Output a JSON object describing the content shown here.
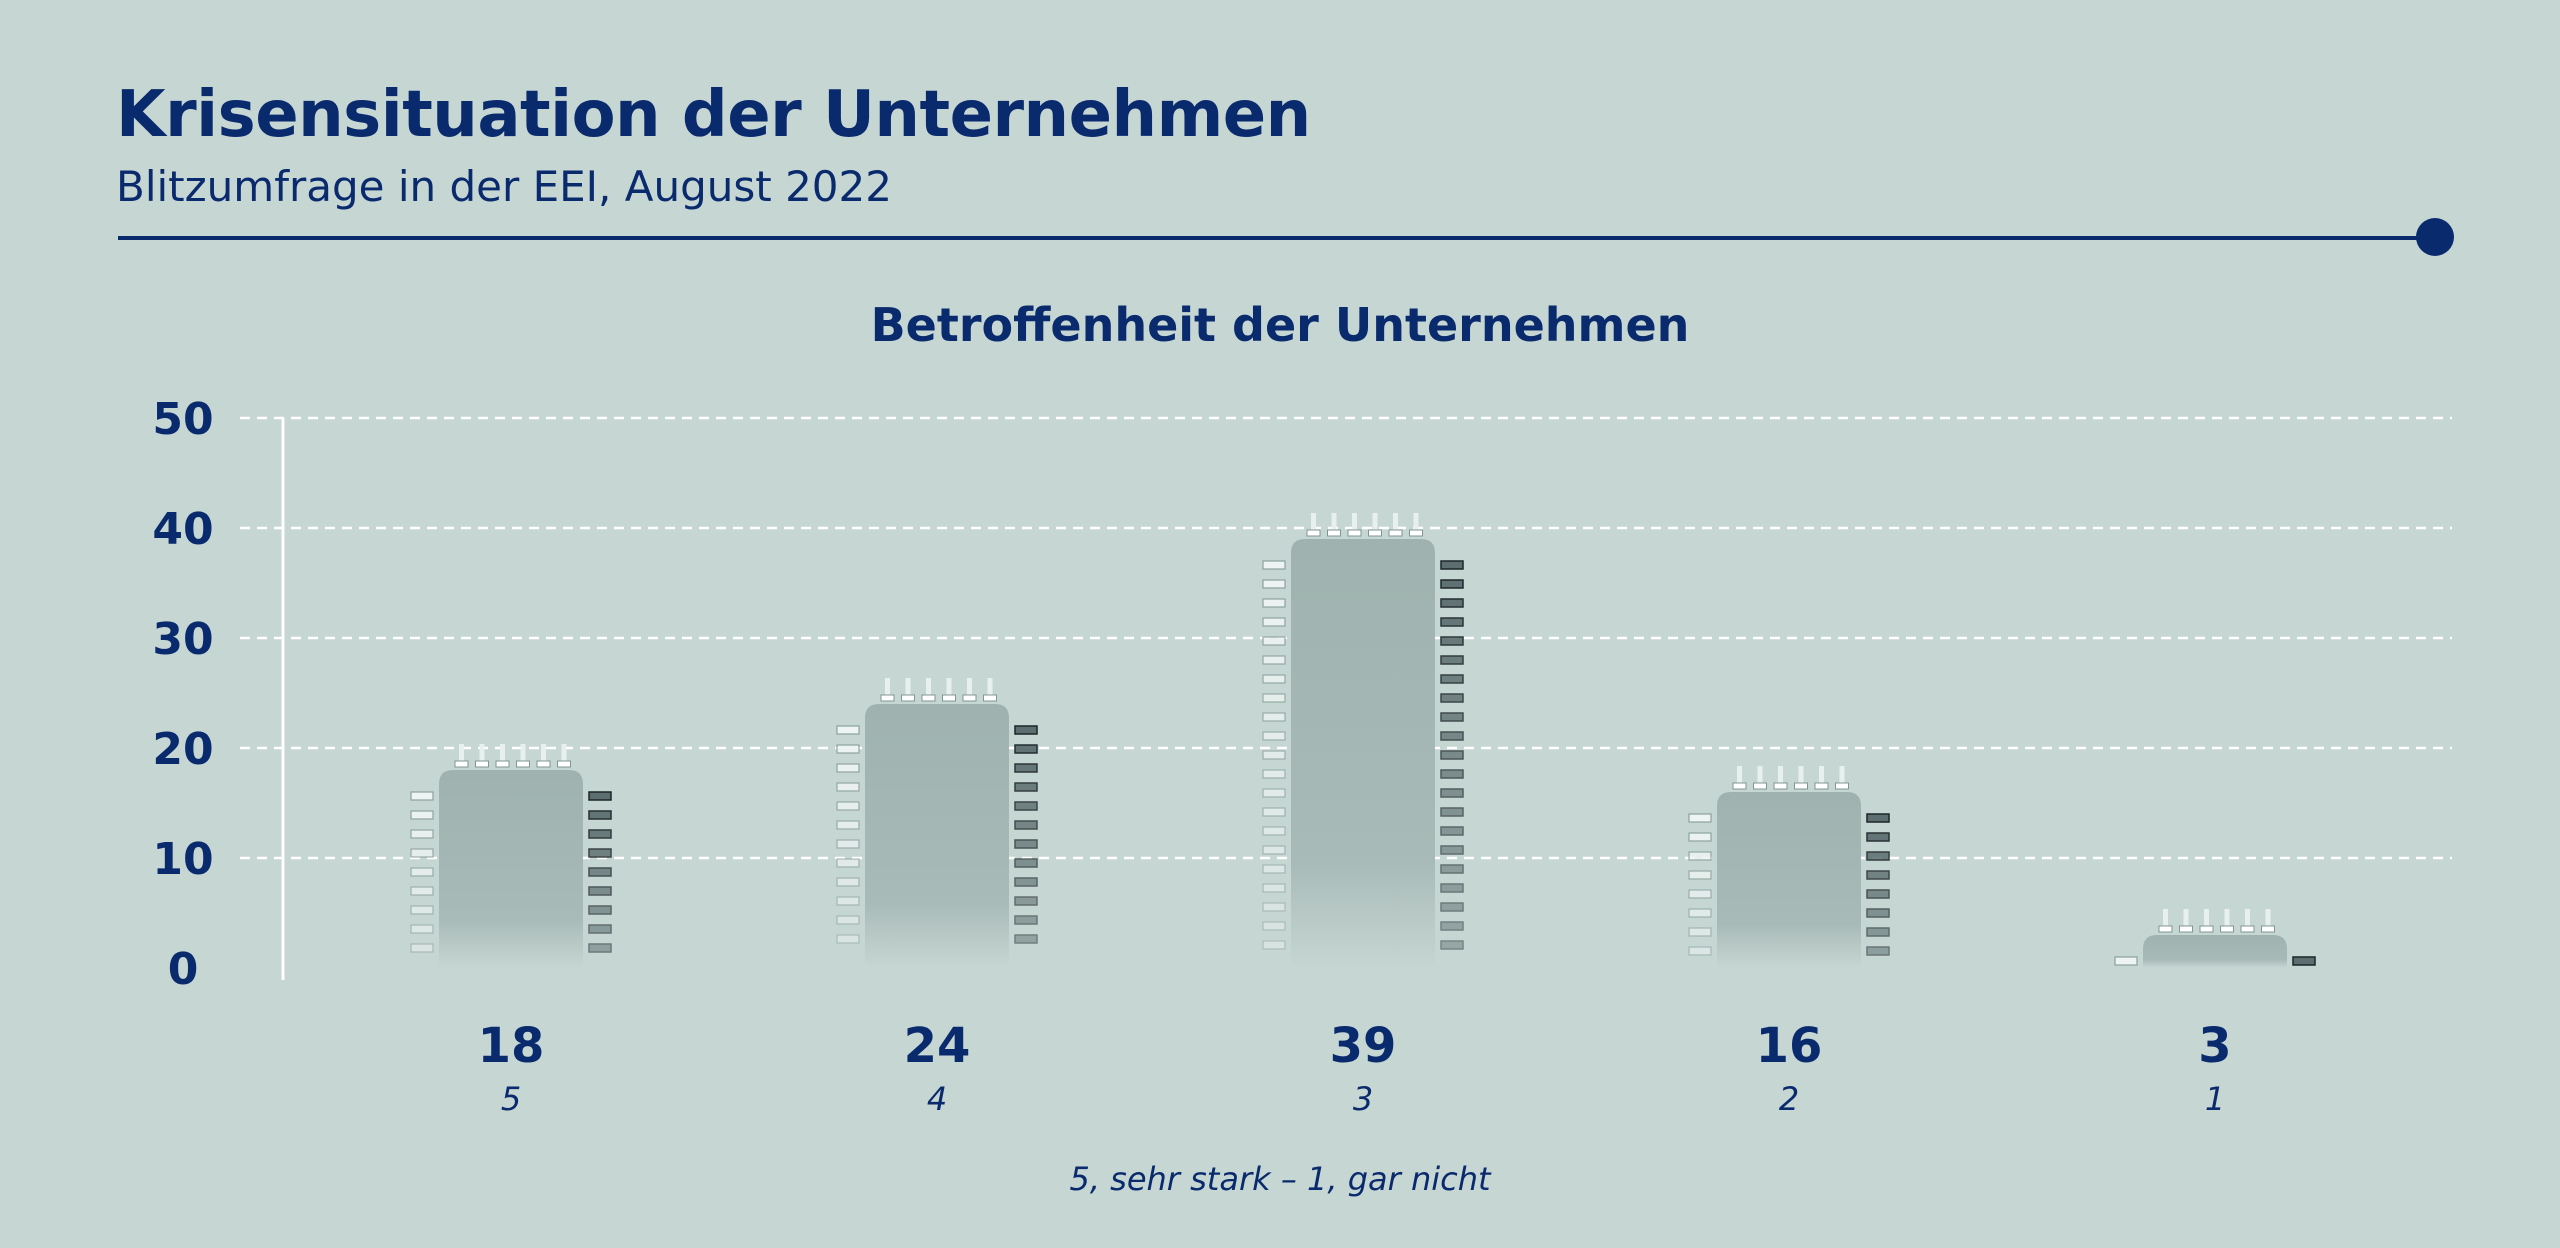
{
  "header": {
    "title": "Krisensituation der Unternehmen",
    "subtitle": "Blitzumfrage in der EEI, August 2022"
  },
  "chart_data": {
    "type": "bar",
    "title": "Betroffenheit der Unternehmen",
    "caption": "5, sehr stark – 1, gar nicht",
    "categories": [
      "5",
      "4",
      "3",
      "2",
      "1"
    ],
    "values": [
      18,
      24,
      39,
      16,
      3
    ],
    "ylim": [
      0,
      50
    ],
    "yticks": [
      0,
      10,
      20,
      30,
      40,
      50
    ],
    "grid": true,
    "legend": "none"
  },
  "colors": {
    "background": "#c6d6d3",
    "text": "#0a2a6e",
    "bar": "#9fb3b0",
    "grid": "#ffffff"
  }
}
